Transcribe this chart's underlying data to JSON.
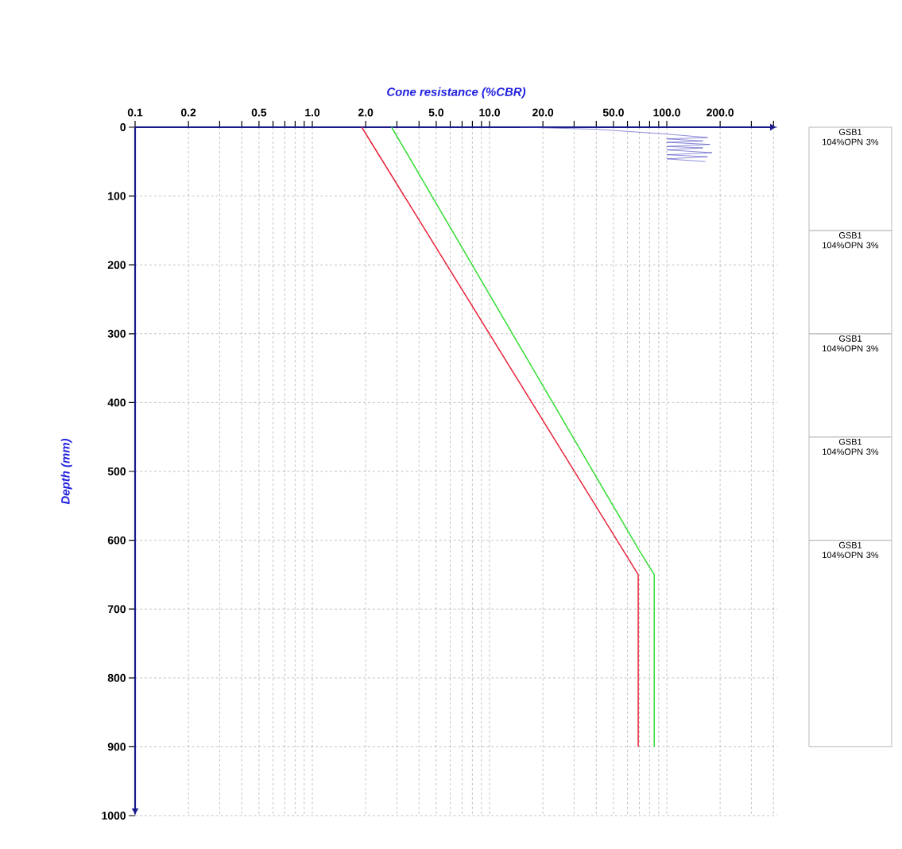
{
  "chart_data": [
    {
      "type": "line",
      "xlabel": "Cone resistance (%CBR)",
      "ylabel": "Depth (mm)",
      "log": "x",
      "xlim": [
        0.1,
        420
      ],
      "ylim": [
        1000,
        0
      ],
      "xticks": [
        0.1,
        0.2,
        {
          "value": 0.3,
          "label": null
        },
        {
          "value": 0.4,
          "label": null
        },
        0.5,
        {
          "value": 0.6,
          "label": null
        },
        {
          "value": 0.7,
          "label": null
        },
        {
          "value": 0.8,
          "label": null
        },
        {
          "value": 0.9,
          "label": null
        },
        {
          "value": 1,
          "label": "1.0"
        },
        {
          "value": 2,
          "label": "2.0"
        },
        {
          "value": 3,
          "label": null
        },
        {
          "value": 4,
          "label": null
        },
        {
          "value": 5,
          "label": "5.0"
        },
        {
          "value": 6,
          "label": null
        },
        {
          "value": 7,
          "label": null
        },
        {
          "value": 8,
          "label": null
        },
        {
          "value": 9,
          "label": null
        },
        {
          "value": 10,
          "label": "10.0"
        },
        {
          "value": 20,
          "label": "20.0"
        },
        {
          "value": 30,
          "label": null
        },
        {
          "value": 40,
          "label": null
        },
        {
          "value": 50,
          "label": "50.0"
        },
        {
          "value": 60,
          "label": null
        },
        {
          "value": 70,
          "label": null
        },
        {
          "value": 80,
          "label": null
        },
        {
          "value": 90,
          "label": null
        },
        {
          "value": 100,
          "label": "100.0"
        },
        {
          "value": 200,
          "label": "200.0"
        },
        {
          "value": 300,
          "label": null
        },
        {
          "value": 400,
          "label": null
        }
      ],
      "yticks": [
        0,
        100,
        200,
        300,
        400,
        500,
        600,
        700,
        800,
        900,
        1000
      ],
      "grid": true,
      "marker": "none",
      "line_style": "solid",
      "series": [
        {
          "color": "#e8233a",
          "x": [
            1.9,
            69,
            69
          ],
          "values": [
            0,
            650,
            900
          ]
        },
        {
          "color": "#33dd33",
          "x": [
            2.8,
            70,
            85,
            85
          ],
          "values": [
            0,
            615,
            650,
            900
          ]
        },
        {
          "color": "#4040c0",
          "x": [
            15,
            40,
            100,
            170,
            100,
            160,
            100,
            175,
            100,
            160,
            100,
            180,
            100,
            170,
            100,
            165
          ],
          "values": [
            0,
            3,
            10,
            15,
            17,
            20,
            22,
            25,
            28,
            30,
            33,
            37,
            40,
            43,
            46,
            50
          ]
        }
      ]
    },
    {
      "type": "bar",
      "stacked": true,
      "categories": [
        null
      ],
      "ylim": [
        1000,
        0
      ],
      "tick_labels": false,
      "series": [
        {
          "name": "GSB1 104%OPN 3%",
          "color": "#ffffff",
          "values": [
            150
          ]
        },
        {
          "name": "GSB1 104%OPN 3%",
          "color": "#ffffff",
          "values": [
            150
          ]
        },
        {
          "name": "GSB1 104%OPN 3%",
          "color": "#ffffff",
          "values": [
            150
          ]
        },
        {
          "name": "GSB1 104%OPN 3%",
          "color": "#ffffff",
          "values": [
            150
          ]
        },
        {
          "name": "GSB1 104%OPN 3%",
          "color": "#ffffff",
          "values": [
            300
          ]
        }
      ]
    }
  ]
}
